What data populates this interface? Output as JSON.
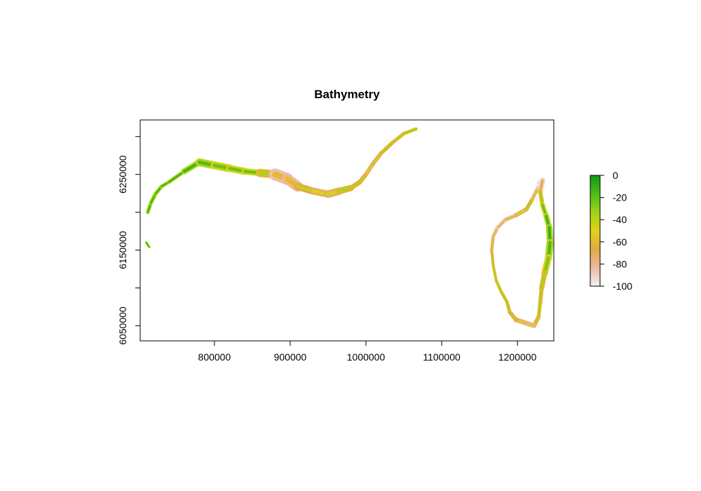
{
  "chart_data": {
    "type": "heatmap",
    "title": "Bathymetry",
    "xlabel": "",
    "ylabel": "",
    "xlim": [
      702000,
      1248000
    ],
    "ylim": [
      6030000,
      6322000
    ],
    "x_ticks": [
      800000,
      900000,
      1000000,
      1100000,
      1200000
    ],
    "x_tick_labels": [
      "800000",
      "900000",
      "1000000",
      "1100000",
      "1200000"
    ],
    "y_ticks": [
      6050000,
      6150000,
      6250000
    ],
    "y_tick_labels": [
      "6050000",
      "6150000",
      "6250000"
    ],
    "y_minor_ticks": [
      6100000,
      6200000,
      6300000
    ],
    "colorbar": {
      "min": -100,
      "max": 0,
      "ticks": [
        0,
        -20,
        -40,
        -60,
        -80,
        -100
      ],
      "tick_labels": [
        "0",
        "-20",
        "-40",
        "-60",
        "-80",
        "-100"
      ],
      "palette": [
        "#f2f2f2",
        "#edb8a3",
        "#e3a840",
        "#e0d21a",
        "#9ed31a",
        "#4bbd19",
        "#0e9a0e"
      ]
    },
    "regions": [
      {
        "name": "mainland-coast-north",
        "coast": [
          [
            712000,
            6200000
          ],
          [
            716000,
            6212000
          ],
          [
            722000,
            6224000
          ],
          [
            730000,
            6234000
          ],
          [
            740000,
            6240000
          ],
          [
            760000,
            6254000
          ],
          [
            780000,
            6266000
          ],
          [
            800000,
            6262000
          ],
          [
            820000,
            6258000
          ],
          [
            840000,
            6254000
          ],
          [
            860000,
            6252000
          ],
          [
            880000,
            6250000
          ],
          [
            896000,
            6244000
          ],
          [
            910000,
            6234000
          ],
          [
            930000,
            6228000
          ],
          [
            950000,
            6224000
          ],
          [
            965000,
            6228000
          ],
          [
            980000,
            6232000
          ],
          [
            992000,
            6240000
          ],
          [
            1000000,
            6250000
          ],
          [
            1010000,
            6265000
          ],
          [
            1020000,
            6278000
          ],
          [
            1035000,
            6292000
          ],
          [
            1050000,
            6304000
          ],
          [
            1066000,
            6310000
          ]
        ],
        "width": [
          3000,
          3200,
          3500,
          3000,
          2500,
          4000,
          8000,
          9000,
          8000,
          7000,
          6000,
          12000,
          16000,
          8000,
          7000,
          8000,
          8000,
          5000,
          4000,
          4000,
          3500,
          3500,
          3000,
          3000,
          2500
        ],
        "depth": [
          -8,
          -10,
          -12,
          -8,
          -8,
          -10,
          -15,
          -20,
          -25,
          -20,
          -22,
          -50,
          -70,
          -45,
          -40,
          -55,
          -40,
          -35,
          -40,
          -45,
          -50,
          -40,
          -38,
          -35,
          -30
        ]
      },
      {
        "name": "corsica-coast",
        "closed": true,
        "coast": [
          [
            1225000,
            6228000
          ],
          [
            1228000,
            6238000
          ],
          [
            1233000,
            6242000
          ],
          [
            1230000,
            6228000
          ],
          [
            1233000,
            6210000
          ],
          [
            1238000,
            6195000
          ],
          [
            1242000,
            6180000
          ],
          [
            1243000,
            6160000
          ],
          [
            1241000,
            6140000
          ],
          [
            1236000,
            6120000
          ],
          [
            1232000,
            6100000
          ],
          [
            1230000,
            6080000
          ],
          [
            1228000,
            6062000
          ],
          [
            1222000,
            6050000
          ],
          [
            1210000,
            6054000
          ],
          [
            1198000,
            6058000
          ],
          [
            1190000,
            6068000
          ],
          [
            1186000,
            6082000
          ],
          [
            1178000,
            6096000
          ],
          [
            1172000,
            6110000
          ],
          [
            1168000,
            6130000
          ],
          [
            1166000,
            6150000
          ],
          [
            1168000,
            6168000
          ],
          [
            1174000,
            6180000
          ],
          [
            1184000,
            6190000
          ],
          [
            1198000,
            6196000
          ],
          [
            1212000,
            6204000
          ],
          [
            1220000,
            6218000
          ]
        ],
        "width": [
          3000,
          5000,
          8000,
          3500,
          4000,
          5000,
          6000,
          7000,
          8000,
          6000,
          4000,
          3000,
          3000,
          4000,
          5000,
          4000,
          3000,
          2500,
          2500,
          2000,
          2000,
          2000,
          2500,
          3000,
          4000,
          4000,
          3500,
          3000
        ],
        "depth": [
          -70,
          -90,
          -95,
          -40,
          -25,
          -15,
          -10,
          -12,
          -20,
          -30,
          -40,
          -35,
          -30,
          -50,
          -60,
          -45,
          -40,
          -35,
          -30,
          -30,
          -35,
          -40,
          -50,
          -60,
          -70,
          -55,
          -40,
          -35
        ]
      },
      {
        "name": "islet",
        "coast": [
          [
            710000,
            6160000
          ],
          [
            714000,
            6154000
          ]
        ],
        "width": [
          1000,
          1000
        ],
        "depth": [
          -10,
          -10
        ]
      }
    ]
  }
}
